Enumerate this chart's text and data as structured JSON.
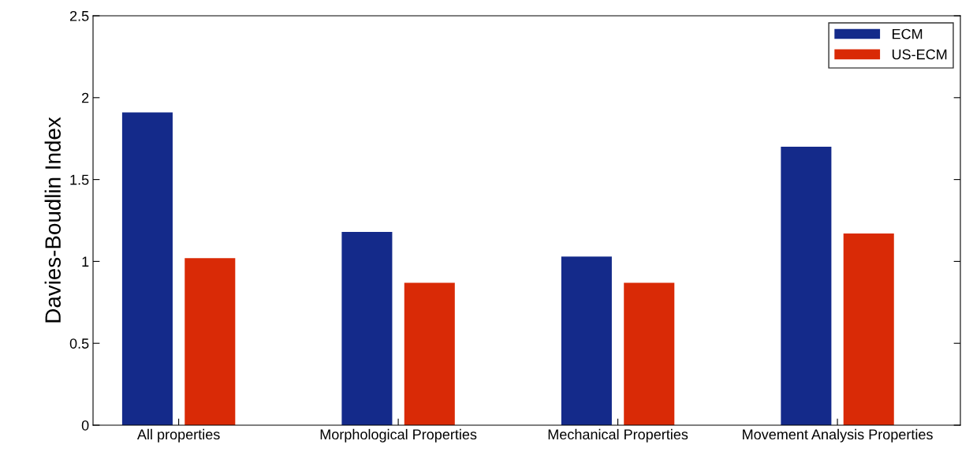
{
  "chart_data": {
    "type": "bar",
    "ylabel": "Davies-Boudlin Index",
    "categories": [
      "All properties",
      "Morphological Properties",
      "Mechanical Properties",
      "Movement Analysis Properties"
    ],
    "series": [
      {
        "name": "ECM",
        "color": "#142a8a",
        "values": [
          1.91,
          1.18,
          1.03,
          1.7
        ]
      },
      {
        "name": "US-ECM",
        "color": "#d92a06",
        "values": [
          1.02,
          0.87,
          0.87,
          1.17
        ]
      }
    ],
    "ylim": [
      0,
      2.5
    ],
    "yticks": [
      0,
      0.5,
      1,
      1.5,
      2,
      2.5
    ],
    "grid": false,
    "legend": "top right"
  }
}
